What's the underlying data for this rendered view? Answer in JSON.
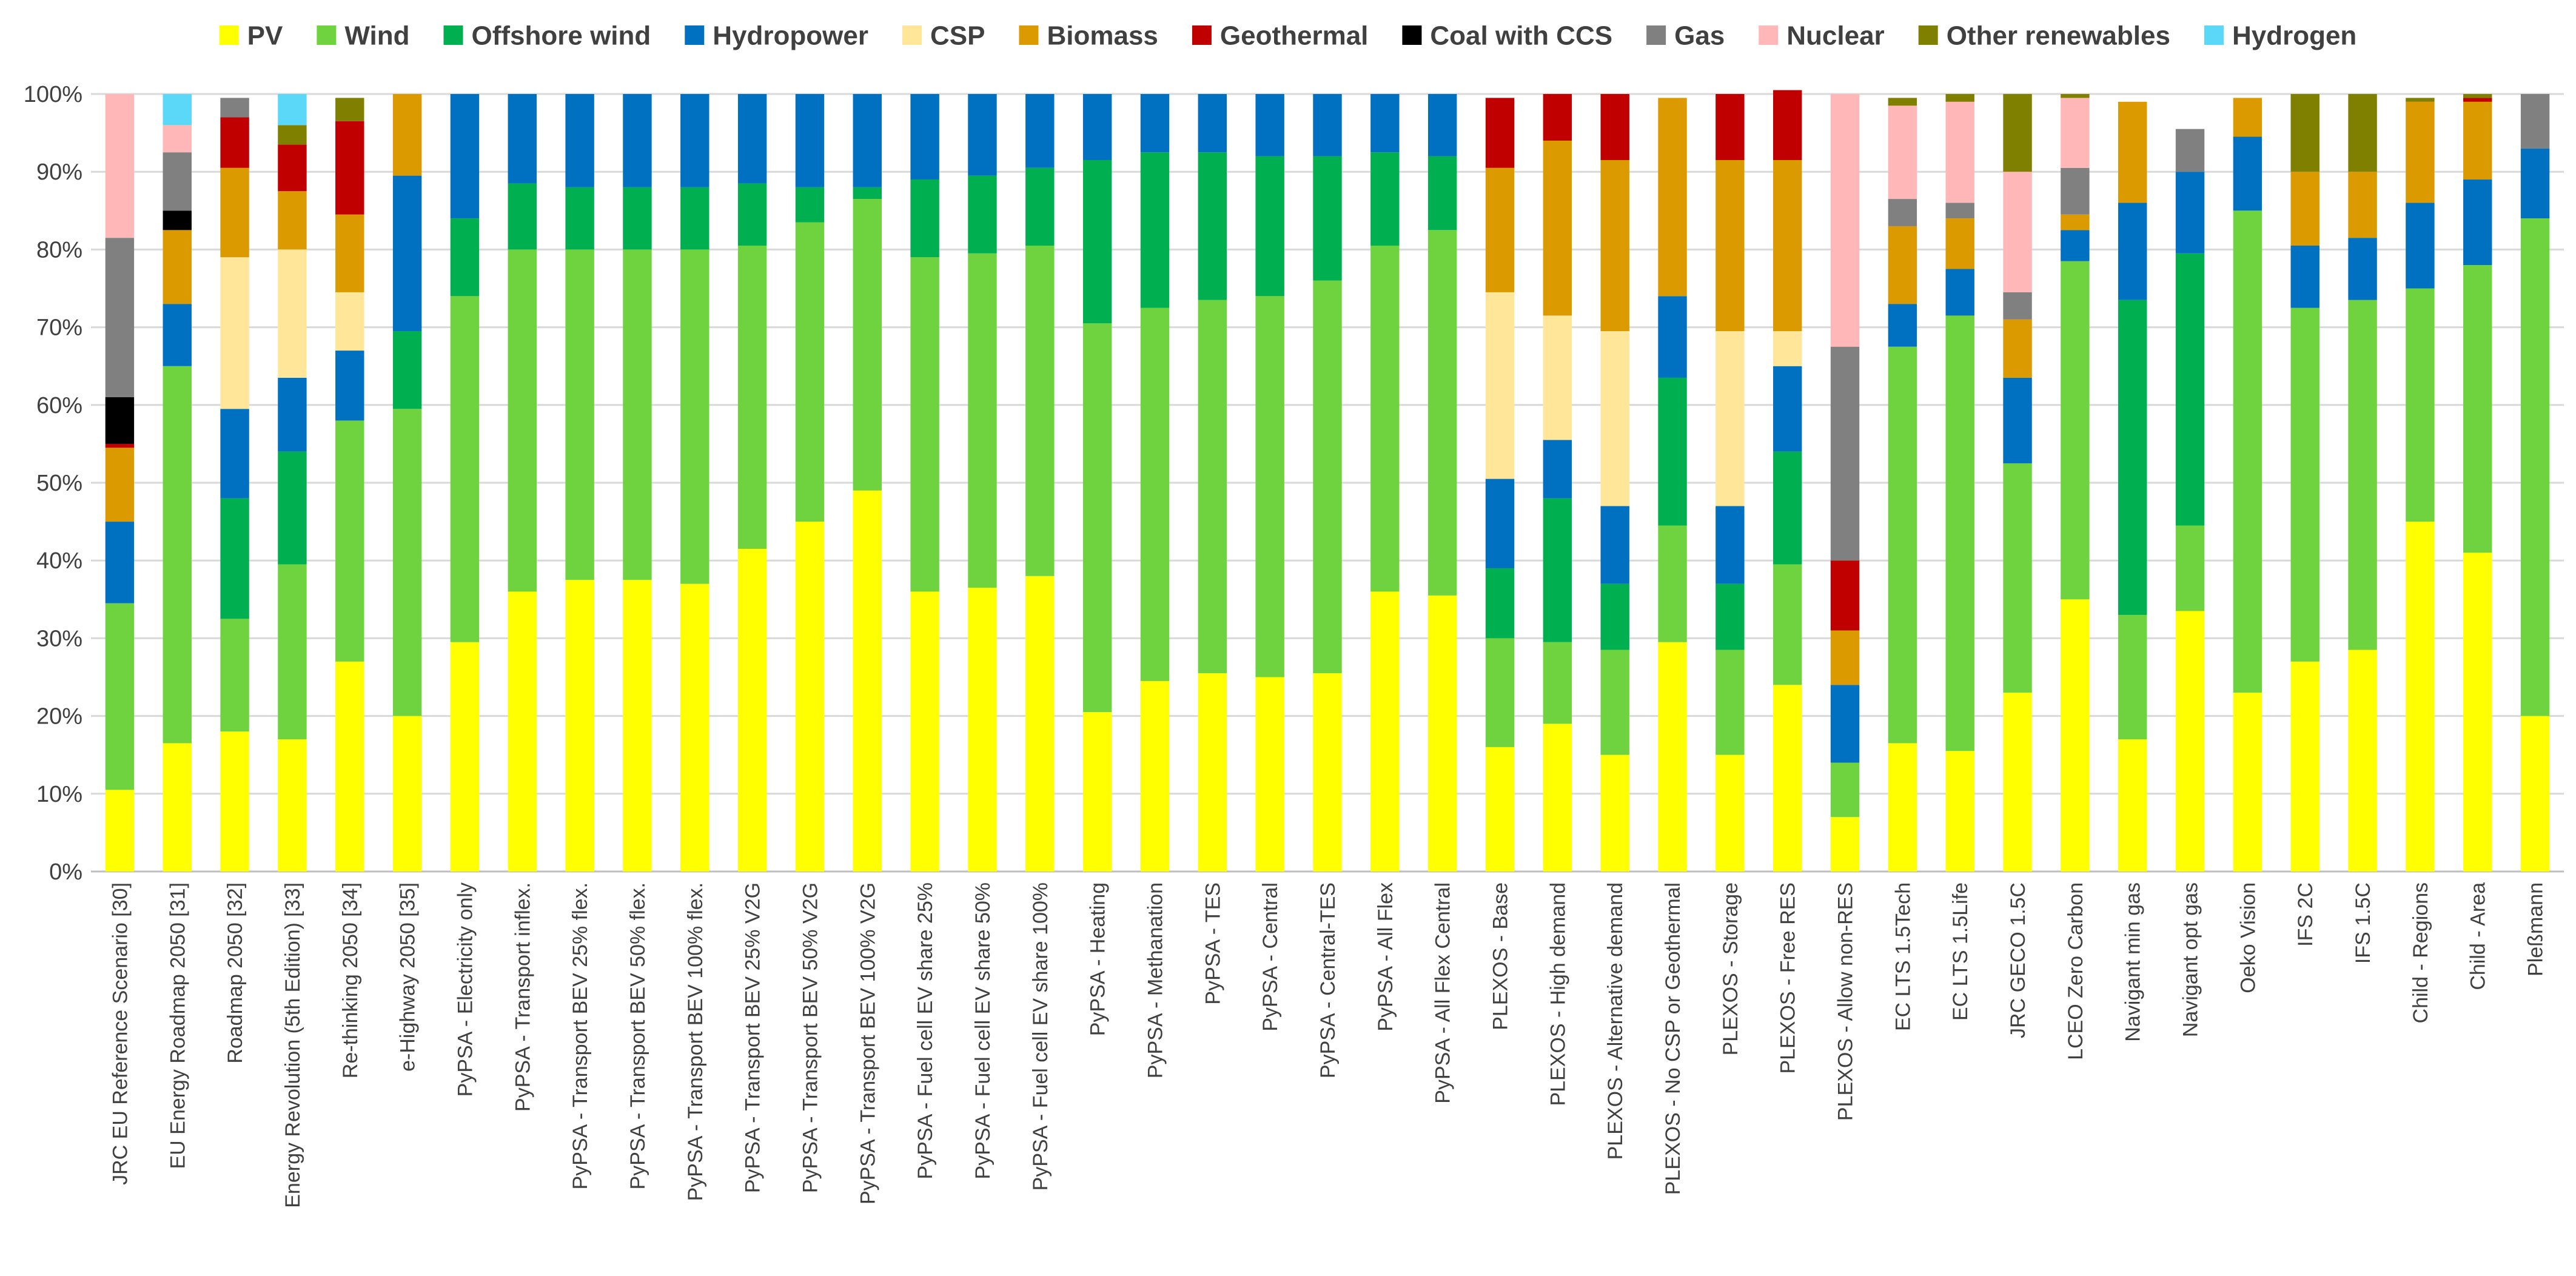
{
  "chart_data": {
    "type": "bar",
    "stacked": true,
    "title": "",
    "xlabel": "",
    "ylabel": "",
    "ylim": [
      0,
      100
    ],
    "y_ticks": [
      "0%",
      "10%",
      "20%",
      "30%",
      "40%",
      "50%",
      "60%",
      "70%",
      "80%",
      "90%",
      "100%"
    ],
    "grid": true,
    "legend_position": "top",
    "categories": [
      "JRC EU Reference Scenario [30]",
      "EU Energy Roadmap 2050 [31]",
      "Roadmap 2050 [32]",
      "Energy Revolution (5th Edition) [33]",
      "Re-thinking 2050 [34]",
      "e-Highway 2050 [35]",
      "PyPSA - Electricity only",
      "PyPSA - Transport inflex.",
      "PyPSA - Transport BEV 25% flex.",
      "PyPSA - Transport BEV 50% flex.",
      "PyPSA - Transport BEV 100% flex.",
      "PyPSA - Transport BEV 25% V2G",
      "PyPSA - Transport BEV 50% V2G",
      "PyPSA - Transport BEV 100% V2G",
      "PyPSA - Fuel cell EV share 25%",
      "PyPSA - Fuel cell EV share 50%",
      "PyPSA - Fuel cell EV share 100%",
      "PyPSA - Heating",
      "PyPSA - Methanation",
      "PyPSA - TES",
      "PyPSA - Central",
      "PyPSA - Central-TES",
      "PyPSA - All Flex",
      "PyPSA - All Flex Central",
      "PLEXOS - Base",
      "PLEXOS - High demand",
      "PLEXOS - Alternative demand",
      "PLEXOS - No CSP or Geothermal",
      "PLEXOS - Storage",
      "PLEXOS - Free RES",
      "PLEXOS - Allow non-RES",
      "EC LTS 1.5Tech",
      "EC LTS 1.5Life",
      "JRC GECO 1.5C",
      "LCEO Zero Carbon",
      "Navigant min gas",
      "Navigant opt gas",
      "Oeko Vision",
      "IFS 2C",
      "IFS 1.5C",
      "Child - Regions",
      "Child - Area",
      "Pleßmann"
    ],
    "series": [
      {
        "name": "PV",
        "color": "#FFFF00",
        "values": [
          10.5,
          16.5,
          18,
          17,
          27,
          20,
          29.5,
          36,
          37.5,
          37.5,
          37,
          41.5,
          45,
          49,
          36,
          36.5,
          38,
          20.5,
          24.5,
          25.5,
          25,
          25.5,
          36,
          35.5,
          16,
          19,
          15,
          29.5,
          15,
          24,
          7,
          16.5,
          15.5,
          23,
          35,
          17,
          33.5,
          23,
          27,
          28.5,
          45,
          41,
          20
        ]
      },
      {
        "name": "Wind",
        "color": "#6FD33F",
        "values": [
          24,
          48.5,
          14.5,
          22.5,
          31,
          39.5,
          44.5,
          44,
          42.5,
          42.5,
          43,
          39,
          38.5,
          37.5,
          43,
          43,
          42.5,
          50,
          48,
          48,
          49,
          50.5,
          44.5,
          47,
          14,
          10.5,
          13.5,
          15,
          13.5,
          15.5,
          7,
          51,
          56,
          29.5,
          43.5,
          16,
          11,
          62,
          45.5,
          45,
          30,
          37,
          64
        ]
      },
      {
        "name": "Offshore wind",
        "color": "#00B050",
        "values": [
          0,
          0,
          15.5,
          14.5,
          0,
          10,
          10,
          8.5,
          8,
          8,
          8,
          8,
          4.5,
          1.5,
          10,
          10,
          10,
          21,
          20,
          19,
          18,
          16,
          12,
          9.5,
          9,
          18.5,
          8.5,
          19,
          8.5,
          14.5,
          0,
          0,
          0,
          0,
          0,
          40.5,
          35,
          0,
          0,
          0,
          0,
          0,
          0
        ]
      },
      {
        "name": "Hydropower",
        "color": "#0070C0",
        "values": [
          10.5,
          8,
          11.5,
          9.5,
          9,
          20,
          16,
          11.5,
          12,
          12,
          12,
          11.5,
          12,
          12,
          11,
          10.5,
          9.5,
          8.5,
          7.5,
          7.5,
          8,
          8,
          7.5,
          8,
          11.5,
          7.5,
          10,
          10.5,
          10,
          11,
          10,
          5.5,
          6,
          11,
          4,
          12.5,
          10.5,
          9.5,
          8,
          8,
          11,
          11,
          9
        ]
      },
      {
        "name": "CSP",
        "color": "#FFE699",
        "values": [
          0,
          0,
          19.5,
          16.5,
          7.5,
          0,
          0,
          0,
          0,
          0,
          0,
          0,
          0,
          0,
          0,
          0,
          0,
          0,
          0,
          0,
          0,
          0,
          0,
          0,
          24,
          16,
          22.5,
          0,
          22.5,
          4.5,
          0,
          0,
          0,
          0,
          0,
          0,
          0,
          0,
          0,
          0,
          0,
          0,
          0
        ]
      },
      {
        "name": "Biomass",
        "color": "#DA9A00",
        "values": [
          9.5,
          9.5,
          11.5,
          7.5,
          10,
          10.5,
          0,
          0,
          0,
          0,
          0,
          0,
          0,
          0,
          0,
          0,
          0,
          0,
          0,
          0,
          0,
          0,
          0,
          0,
          16,
          22.5,
          22,
          25.5,
          22,
          22,
          7,
          10,
          6.5,
          7.5,
          2,
          13,
          0,
          5,
          9.5,
          8.5,
          13,
          10,
          0
        ]
      },
      {
        "name": "Geothermal",
        "color": "#C00000",
        "values": [
          0.5,
          0,
          6.5,
          6,
          12,
          0,
          0,
          0,
          0,
          0,
          0,
          0,
          0,
          0,
          0,
          0,
          0,
          0,
          0,
          0,
          0,
          0,
          0,
          0,
          9,
          6,
          8.5,
          0,
          8.5,
          9,
          9,
          0,
          0,
          0,
          0,
          0,
          0,
          0,
          0,
          0,
          0,
          0.5,
          0
        ]
      },
      {
        "name": "Coal with CCS",
        "color": "#000000",
        "values": [
          6,
          2.5,
          0,
          0,
          0,
          0,
          0,
          0,
          0,
          0,
          0,
          0,
          0,
          0,
          0,
          0,
          0,
          0,
          0,
          0,
          0,
          0,
          0,
          0,
          0,
          0,
          0,
          0,
          0,
          0,
          0,
          0,
          0,
          0,
          0,
          0,
          0,
          0,
          0,
          0,
          0,
          0,
          0
        ]
      },
      {
        "name": "Gas",
        "color": "#808080",
        "values": [
          20.5,
          7.5,
          2.5,
          0,
          0,
          0,
          0,
          0,
          0,
          0,
          0,
          0,
          0,
          0,
          0,
          0,
          0,
          0,
          0,
          0,
          0,
          0,
          0,
          0,
          0,
          0,
          0,
          0,
          0,
          0,
          27.5,
          3.5,
          2,
          3.5,
          6,
          0,
          5.5,
          0,
          0,
          0,
          0,
          0,
          7
        ]
      },
      {
        "name": "Nuclear",
        "color": "#FFB7B7",
        "values": [
          18.5,
          3.5,
          0,
          0,
          0,
          0,
          0,
          0,
          0,
          0,
          0,
          0,
          0,
          0,
          0,
          0,
          0,
          0,
          0,
          0,
          0,
          0,
          0,
          0,
          0,
          0,
          0,
          0,
          0,
          0,
          32.5,
          12,
          13,
          15.5,
          9,
          0,
          0,
          0,
          0,
          0,
          0,
          0,
          0
        ]
      },
      {
        "name": "Other renewables",
        "color": "#808000",
        "values": [
          0,
          0,
          0,
          2.5,
          3,
          0,
          0,
          0,
          0,
          0,
          0,
          0,
          0,
          0,
          0,
          0,
          0,
          0,
          0,
          0,
          0,
          0,
          0,
          0,
          0,
          0,
          0,
          0,
          0,
          0,
          0,
          1,
          1,
          10,
          0.5,
          0,
          0,
          0,
          10,
          10,
          0.5,
          0.5,
          0
        ]
      },
      {
        "name": "Hydrogen",
        "color": "#5BD8F8",
        "values": [
          0,
          4,
          0,
          4,
          0,
          0,
          0,
          0,
          0,
          0,
          0,
          0,
          0,
          0,
          0,
          0,
          0,
          0,
          0,
          0,
          0,
          0,
          0,
          0,
          0,
          0,
          0,
          0,
          0,
          0,
          0,
          0,
          0,
          0,
          0,
          0,
          0,
          0,
          0,
          0,
          0,
          0,
          0
        ]
      }
    ]
  }
}
